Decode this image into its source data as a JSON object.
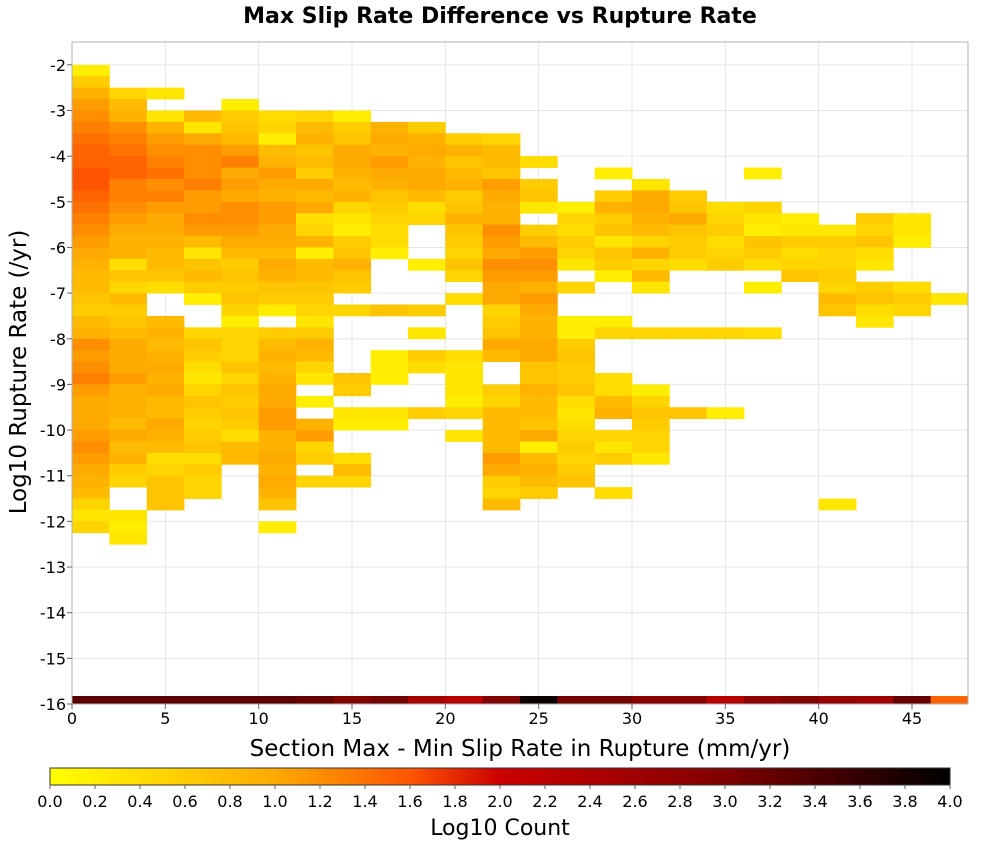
{
  "chart_data": {
    "type": "heatmap",
    "title": "Max Slip Rate Difference vs Rupture Rate",
    "xlabel": "Section Max - Min Slip Rate in Rupture (mm/yr)",
    "ylabel": "Log10 Rupture Rate (/yr)",
    "xlim": [
      0,
      48
    ],
    "ylim": [
      -16,
      -1.5
    ],
    "x_bin_width": 2,
    "y_bin_height": 0.25,
    "x_ticks": [
      "0",
      "5",
      "10",
      "15",
      "20",
      "25",
      "30",
      "35",
      "40",
      "45"
    ],
    "x_tick_values": [
      0,
      5,
      10,
      15,
      20,
      25,
      30,
      35,
      40,
      45
    ],
    "y_ticks": [
      "-2",
      "-3",
      "-4",
      "-5",
      "-6",
      "-7",
      "-8",
      "-9",
      "-10",
      "-11",
      "-12",
      "-13",
      "-14",
      "-15",
      "-16"
    ],
    "y_tick_values": [
      -2,
      -3,
      -4,
      -5,
      -6,
      -7,
      -8,
      -9,
      -10,
      -11,
      -12,
      -13,
      -14,
      -15,
      -16
    ],
    "grid": true,
    "colorbar": {
      "label": "Log10 Count",
      "range": [
        0,
        4
      ],
      "ticks": [
        "0.0",
        "0.2",
        "0.4",
        "0.6",
        "0.8",
        "1.0",
        "1.2",
        "1.4",
        "1.6",
        "1.8",
        "2.0",
        "2.2",
        "2.4",
        "2.6",
        "2.8",
        "3.0",
        "3.2",
        "3.4",
        "3.6",
        "3.8",
        "4.0"
      ],
      "tick_values": [
        0,
        0.2,
        0.4,
        0.6,
        0.8,
        1.0,
        1.2,
        1.4,
        1.6,
        1.8,
        2.0,
        2.2,
        2.4,
        2.6,
        2.8,
        3.0,
        3.2,
        3.4,
        3.6,
        3.8,
        4.0
      ],
      "colors": [
        "#ffff00",
        "#ffaa00",
        "#ff5500",
        "#cc0000",
        "#800000",
        "#000000"
      ],
      "color_stops": [
        0,
        1,
        1.6,
        2,
        3,
        4
      ]
    },
    "y_row_bins": [
      -2.125,
      -2.375,
      -2.625,
      -2.875,
      -3.125,
      -3.375,
      -3.625,
      -3.875,
      -4.125,
      -4.375,
      -4.625,
      -4.875,
      -5.125,
      -5.375,
      -5.625,
      -5.875,
      -6.125,
      -6.375,
      -6.625,
      -6.875,
      -7.125,
      -7.375,
      -7.625,
      -7.875,
      -8.125,
      -8.375,
      -8.625,
      -8.875,
      -9.125,
      -9.375,
      -9.625,
      -9.875,
      -10.125,
      -10.375,
      -10.625,
      -10.875,
      -11.125,
      -11.375,
      -11.625,
      -11.875,
      -12.125
    ],
    "x_col_bins": [
      1,
      3,
      5,
      7,
      9,
      11,
      13,
      15,
      17,
      19,
      21,
      23,
      25,
      27,
      29,
      31,
      33,
      35,
      37,
      39,
      41,
      43,
      45,
      47
    ],
    "log10_count_rows": [
      [
        0.2,
        null,
        null,
        null,
        null,
        null,
        null,
        null,
        null,
        null,
        null,
        null,
        null,
        null,
        null,
        null,
        null,
        null,
        null,
        null,
        null,
        null,
        null,
        null
      ],
      [
        0.6,
        null,
        null,
        null,
        null,
        null,
        null,
        null,
        null,
        null,
        null,
        null,
        null,
        null,
        null,
        null,
        null,
        null,
        null,
        null,
        null,
        null,
        null,
        null
      ],
      [
        0.9,
        0.5,
        0.3,
        null,
        null,
        null,
        null,
        null,
        null,
        null,
        null,
        null,
        null,
        null,
        null,
        null,
        null,
        null,
        null,
        null,
        null,
        null,
        null,
        null
      ],
      [
        1.1,
        0.8,
        null,
        null,
        0.2,
        null,
        null,
        null,
        null,
        null,
        null,
        null,
        null,
        null,
        null,
        null,
        null,
        null,
        null,
        null,
        null,
        null,
        null,
        null
      ],
      [
        1.2,
        0.9,
        0.3,
        0.8,
        0.6,
        0.4,
        0.5,
        0.2,
        null,
        null,
        null,
        null,
        null,
        null,
        null,
        null,
        null,
        null,
        null,
        null,
        null,
        null,
        null,
        null
      ],
      [
        1.3,
        1.2,
        0.9,
        0.3,
        0.7,
        0.5,
        0.8,
        0.6,
        0.9,
        0.6,
        null,
        null,
        null,
        null,
        null,
        null,
        null,
        null,
        null,
        null,
        null,
        null,
        null,
        null
      ],
      [
        1.4,
        1.3,
        1.1,
        1.0,
        0.8,
        0.2,
        0.9,
        0.7,
        1.0,
        0.9,
        0.6,
        0.5,
        null,
        null,
        null,
        null,
        null,
        null,
        null,
        null,
        null,
        null,
        null,
        null
      ],
      [
        1.5,
        1.4,
        1.2,
        1.2,
        1.1,
        0.8,
        0.7,
        1.0,
        0.9,
        1.0,
        0.9,
        0.8,
        null,
        null,
        null,
        null,
        null,
        null,
        null,
        null,
        null,
        null,
        null,
        null
      ],
      [
        1.5,
        1.5,
        1.3,
        1.2,
        1.3,
        0.9,
        0.8,
        1.0,
        1.1,
        0.9,
        0.7,
        0.8,
        0.4,
        null,
        null,
        null,
        null,
        null,
        null,
        null,
        null,
        null,
        null,
        null
      ],
      [
        1.6,
        1.5,
        1.4,
        1.2,
        1.0,
        1.1,
        0.6,
        0.9,
        1.0,
        1.0,
        0.8,
        0.7,
        null,
        null,
        0.2,
        null,
        null,
        null,
        0.2,
        null,
        null,
        null,
        null,
        null
      ],
      [
        1.6,
        1.3,
        1.2,
        1.3,
        1.1,
        1.0,
        1.0,
        0.8,
        0.9,
        1.0,
        0.9,
        1.1,
        0.6,
        null,
        null,
        0.3,
        null,
        null,
        null,
        null,
        null,
        null,
        null,
        null
      ],
      [
        1.5,
        1.3,
        1.3,
        1.1,
        1.0,
        0.9,
        0.8,
        0.9,
        0.7,
        0.8,
        0.6,
        1.0,
        0.7,
        null,
        0.6,
        1.0,
        0.6,
        null,
        null,
        null,
        null,
        null,
        null,
        null
      ],
      [
        1.4,
        1.2,
        1.1,
        1.1,
        1.2,
        1.1,
        1.0,
        0.5,
        0.6,
        0.4,
        0.7,
        0.9,
        0.3,
        0.2,
        0.9,
        1.0,
        0.7,
        0.4,
        0.5,
        null,
        null,
        null,
        null,
        null
      ],
      [
        1.3,
        1.1,
        1.0,
        1.2,
        1.2,
        1.1,
        0.4,
        0.3,
        0.5,
        0.5,
        0.9,
        0.9,
        null,
        0.5,
        0.6,
        0.9,
        1.0,
        0.5,
        0.3,
        0.2,
        null,
        0.6,
        0.3,
        null
      ],
      [
        1.2,
        1.0,
        1.0,
        1.1,
        1.1,
        1.0,
        0.5,
        0.2,
        0.4,
        null,
        0.7,
        1.2,
        0.6,
        0.4,
        0.7,
        0.8,
        0.7,
        0.6,
        0.2,
        0.3,
        0.3,
        0.5,
        0.3,
        null
      ],
      [
        1.1,
        0.9,
        0.9,
        0.8,
        1.0,
        1.0,
        0.9,
        0.6,
        0.4,
        null,
        0.6,
        1.1,
        0.8,
        0.6,
        0.3,
        0.5,
        0.6,
        0.4,
        0.7,
        0.6,
        0.6,
        0.7,
        0.2,
        null
      ],
      [
        1.0,
        0.9,
        0.8,
        0.3,
        0.8,
        0.8,
        0.2,
        0.7,
        0.2,
        null,
        0.5,
        1.0,
        1.1,
        0.5,
        0.7,
        0.9,
        0.6,
        0.5,
        0.6,
        0.4,
        0.5,
        0.4,
        null,
        null
      ],
      [
        0.9,
        0.4,
        0.8,
        0.7,
        0.6,
        1.0,
        0.8,
        0.9,
        null,
        0.2,
        0.7,
        1.2,
        1.2,
        0.3,
        0.6,
        0.5,
        0.4,
        0.6,
        0.4,
        0.5,
        0.5,
        0.3,
        null,
        null
      ],
      [
        0.8,
        0.7,
        0.7,
        0.8,
        0.7,
        0.9,
        0.8,
        0.7,
        null,
        null,
        0.5,
        1.1,
        1.1,
        null,
        0.2,
        0.8,
        null,
        null,
        null,
        0.7,
        0.6,
        null,
        null,
        null
      ],
      [
        0.8,
        0.5,
        0.4,
        0.6,
        0.6,
        0.7,
        0.7,
        0.6,
        null,
        null,
        null,
        1.0,
        0.9,
        0.5,
        null,
        0.3,
        null,
        null,
        0.2,
        null,
        0.5,
        0.6,
        0.4,
        null
      ],
      [
        0.7,
        0.8,
        null,
        0.2,
        0.7,
        0.6,
        0.6,
        null,
        null,
        null,
        0.4,
        1.0,
        1.1,
        null,
        null,
        null,
        null,
        null,
        null,
        null,
        0.8,
        0.7,
        0.6,
        0.3
      ],
      [
        0.6,
        0.6,
        null,
        null,
        0.5,
        0.2,
        0.5,
        0.5,
        0.7,
        0.6,
        null,
        0.5,
        1.0,
        null,
        null,
        null,
        null,
        null,
        null,
        null,
        0.7,
        0.4,
        0.5,
        null
      ],
      [
        0.8,
        0.7,
        0.8,
        null,
        0.2,
        null,
        0.3,
        null,
        null,
        null,
        null,
        0.6,
        0.9,
        0.2,
        0.2,
        null,
        null,
        null,
        null,
        null,
        null,
        0.3,
        null,
        null
      ],
      [
        0.9,
        0.8,
        0.9,
        0.5,
        0.5,
        0.6,
        0.6,
        null,
        null,
        0.3,
        null,
        0.7,
        0.9,
        0.2,
        0.5,
        0.5,
        0.5,
        0.5,
        0.4,
        null,
        null,
        null,
        null,
        null
      ],
      [
        1.2,
        1.0,
        0.8,
        0.7,
        0.5,
        0.8,
        0.9,
        null,
        null,
        null,
        null,
        1.0,
        1.0,
        0.6,
        null,
        null,
        null,
        null,
        null,
        null,
        null,
        null,
        null,
        null
      ],
      [
        1.1,
        1.0,
        0.9,
        0.6,
        0.5,
        0.9,
        0.8,
        null,
        0.2,
        0.6,
        0.4,
        0.8,
        1.0,
        0.7,
        null,
        null,
        null,
        null,
        null,
        null,
        null,
        null,
        null,
        null
      ],
      [
        1.2,
        1.0,
        1.0,
        0.4,
        0.7,
        0.8,
        0.5,
        null,
        0.2,
        0.4,
        0.3,
        null,
        0.7,
        0.6,
        null,
        null,
        null,
        null,
        null,
        null,
        null,
        null,
        null,
        null
      ],
      [
        1.3,
        1.1,
        0.9,
        0.3,
        0.5,
        0.9,
        0.3,
        0.7,
        0.2,
        null,
        0.3,
        null,
        0.7,
        0.6,
        0.4,
        null,
        null,
        null,
        null,
        null,
        null,
        null,
        null,
        null
      ],
      [
        1.1,
        0.9,
        1.0,
        0.5,
        0.7,
        1.0,
        null,
        0.6,
        null,
        null,
        0.3,
        0.6,
        0.9,
        0.7,
        0.4,
        0.2,
        null,
        null,
        null,
        null,
        null,
        null,
        null,
        null
      ],
      [
        1.0,
        0.9,
        0.8,
        0.7,
        0.6,
        1.0,
        0.2,
        null,
        null,
        null,
        0.2,
        0.5,
        0.8,
        0.4,
        0.8,
        0.5,
        null,
        null,
        null,
        null,
        null,
        null,
        null,
        null
      ],
      [
        1.0,
        0.9,
        0.8,
        0.6,
        0.7,
        1.1,
        null,
        0.3,
        0.3,
        0.6,
        0.5,
        0.8,
        0.8,
        0.3,
        0.9,
        0.7,
        0.7,
        0.2,
        null,
        null,
        null,
        null,
        null,
        null
      ],
      [
        1.0,
        0.8,
        1.0,
        0.5,
        0.6,
        1.1,
        0.9,
        0.2,
        0.2,
        null,
        null,
        0.8,
        0.7,
        0.4,
        null,
        0.6,
        null,
        null,
        null,
        null,
        null,
        null,
        null,
        null
      ],
      [
        1.1,
        1.0,
        0.9,
        0.6,
        0.4,
        0.9,
        1.1,
        null,
        null,
        null,
        0.3,
        0.8,
        1.0,
        0.5,
        0.5,
        0.5,
        null,
        null,
        null,
        null,
        null,
        null,
        null,
        null
      ],
      [
        1.2,
        0.8,
        0.8,
        0.7,
        0.8,
        0.9,
        0.5,
        null,
        null,
        null,
        null,
        0.8,
        0.2,
        0.6,
        0.3,
        0.5,
        null,
        null,
        null,
        null,
        null,
        null,
        null,
        null
      ],
      [
        1.1,
        0.9,
        0.4,
        0.4,
        0.8,
        1.0,
        0.6,
        0.4,
        null,
        null,
        null,
        1.1,
        0.8,
        0.5,
        0.6,
        0.3,
        null,
        null,
        null,
        null,
        null,
        null,
        null,
        null
      ],
      [
        1.0,
        0.6,
        0.5,
        0.6,
        null,
        0.9,
        null,
        0.8,
        null,
        null,
        null,
        1.0,
        0.9,
        0.6,
        null,
        null,
        null,
        null,
        null,
        null,
        null,
        null,
        null,
        null
      ],
      [
        0.9,
        0.5,
        0.7,
        0.5,
        null,
        1.0,
        0.5,
        0.5,
        null,
        null,
        null,
        0.6,
        0.8,
        0.7,
        null,
        null,
        null,
        null,
        null,
        null,
        null,
        null,
        null,
        null
      ],
      [
        0.8,
        null,
        0.7,
        0.5,
        null,
        0.9,
        null,
        null,
        null,
        null,
        null,
        0.5,
        0.6,
        null,
        0.4,
        null,
        null,
        null,
        null,
        null,
        null,
        null,
        null,
        null
      ],
      [
        0.5,
        null,
        0.7,
        null,
        null,
        0.7,
        null,
        null,
        null,
        null,
        null,
        0.8,
        null,
        null,
        null,
        null,
        null,
        null,
        null,
        null,
        0.3,
        null,
        null,
        null
      ],
      [
        0.3,
        0.3,
        null,
        null,
        null,
        null,
        null,
        null,
        null,
        null,
        null,
        null,
        null,
        null,
        null,
        null,
        null,
        null,
        null,
        null,
        null,
        null,
        null,
        null
      ],
      [
        0.5,
        0.2,
        null,
        null,
        null,
        0.2,
        null,
        null,
        null,
        null,
        null,
        null,
        null,
        null,
        null,
        null,
        null,
        null,
        null,
        null,
        null,
        null,
        null,
        null
      ]
    ],
    "extra_cells": [
      {
        "x": 3,
        "y": -12.375,
        "value": 0.3
      }
    ],
    "bottom_row": {
      "y": -15.875,
      "values": [
        3.3,
        3.3,
        3.3,
        3.3,
        3.3,
        3.3,
        3.2,
        3.0,
        3.1,
        2.5,
        2.3,
        3.0,
        3.9,
        3.1,
        3.1,
        2.9,
        2.9,
        2.3,
        2.8,
        3.0,
        2.7,
        2.6,
        3.2,
        1.5
      ]
    }
  }
}
